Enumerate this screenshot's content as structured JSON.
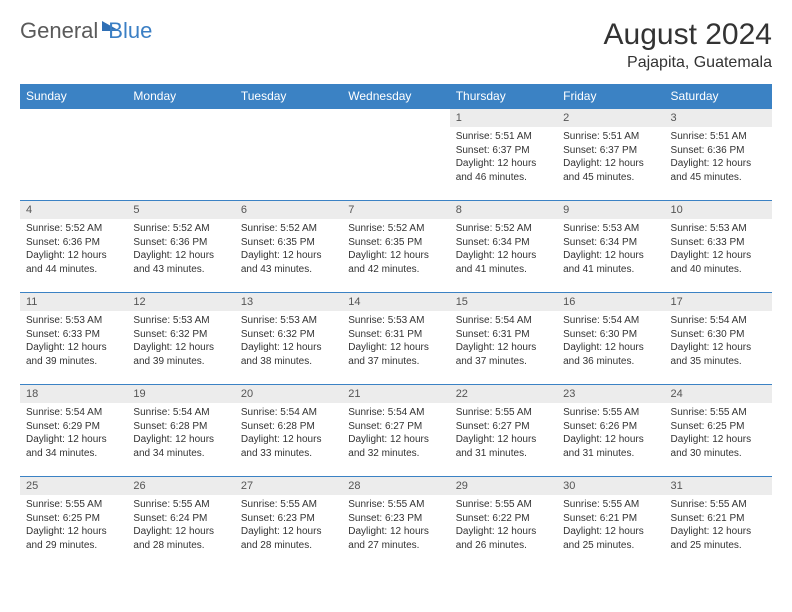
{
  "brand": {
    "part1": "General",
    "part2": "Blue"
  },
  "title": "August 2024",
  "location": "Pajapita, Guatemala",
  "colors": {
    "header_bg": "#3b82c4",
    "header_text": "#ffffff",
    "daynum_bg": "#ececec",
    "border": "#3b82c4",
    "brand_gray": "#5a5a5a",
    "brand_blue": "#3b7fc4"
  },
  "dayNames": [
    "Sunday",
    "Monday",
    "Tuesday",
    "Wednesday",
    "Thursday",
    "Friday",
    "Saturday"
  ],
  "weeks": [
    [
      {
        "n": "",
        "sr": "",
        "ss": "",
        "dl": ""
      },
      {
        "n": "",
        "sr": "",
        "ss": "",
        "dl": ""
      },
      {
        "n": "",
        "sr": "",
        "ss": "",
        "dl": ""
      },
      {
        "n": "",
        "sr": "",
        "ss": "",
        "dl": ""
      },
      {
        "n": "1",
        "sr": "5:51 AM",
        "ss": "6:37 PM",
        "dl": "12 hours and 46 minutes."
      },
      {
        "n": "2",
        "sr": "5:51 AM",
        "ss": "6:37 PM",
        "dl": "12 hours and 45 minutes."
      },
      {
        "n": "3",
        "sr": "5:51 AM",
        "ss": "6:36 PM",
        "dl": "12 hours and 45 minutes."
      }
    ],
    [
      {
        "n": "4",
        "sr": "5:52 AM",
        "ss": "6:36 PM",
        "dl": "12 hours and 44 minutes."
      },
      {
        "n": "5",
        "sr": "5:52 AM",
        "ss": "6:36 PM",
        "dl": "12 hours and 43 minutes."
      },
      {
        "n": "6",
        "sr": "5:52 AM",
        "ss": "6:35 PM",
        "dl": "12 hours and 43 minutes."
      },
      {
        "n": "7",
        "sr": "5:52 AM",
        "ss": "6:35 PM",
        "dl": "12 hours and 42 minutes."
      },
      {
        "n": "8",
        "sr": "5:52 AM",
        "ss": "6:34 PM",
        "dl": "12 hours and 41 minutes."
      },
      {
        "n": "9",
        "sr": "5:53 AM",
        "ss": "6:34 PM",
        "dl": "12 hours and 41 minutes."
      },
      {
        "n": "10",
        "sr": "5:53 AM",
        "ss": "6:33 PM",
        "dl": "12 hours and 40 minutes."
      }
    ],
    [
      {
        "n": "11",
        "sr": "5:53 AM",
        "ss": "6:33 PM",
        "dl": "12 hours and 39 minutes."
      },
      {
        "n": "12",
        "sr": "5:53 AM",
        "ss": "6:32 PM",
        "dl": "12 hours and 39 minutes."
      },
      {
        "n": "13",
        "sr": "5:53 AM",
        "ss": "6:32 PM",
        "dl": "12 hours and 38 minutes."
      },
      {
        "n": "14",
        "sr": "5:53 AM",
        "ss": "6:31 PM",
        "dl": "12 hours and 37 minutes."
      },
      {
        "n": "15",
        "sr": "5:54 AM",
        "ss": "6:31 PM",
        "dl": "12 hours and 37 minutes."
      },
      {
        "n": "16",
        "sr": "5:54 AM",
        "ss": "6:30 PM",
        "dl": "12 hours and 36 minutes."
      },
      {
        "n": "17",
        "sr": "5:54 AM",
        "ss": "6:30 PM",
        "dl": "12 hours and 35 minutes."
      }
    ],
    [
      {
        "n": "18",
        "sr": "5:54 AM",
        "ss": "6:29 PM",
        "dl": "12 hours and 34 minutes."
      },
      {
        "n": "19",
        "sr": "5:54 AM",
        "ss": "6:28 PM",
        "dl": "12 hours and 34 minutes."
      },
      {
        "n": "20",
        "sr": "5:54 AM",
        "ss": "6:28 PM",
        "dl": "12 hours and 33 minutes."
      },
      {
        "n": "21",
        "sr": "5:54 AM",
        "ss": "6:27 PM",
        "dl": "12 hours and 32 minutes."
      },
      {
        "n": "22",
        "sr": "5:55 AM",
        "ss": "6:27 PM",
        "dl": "12 hours and 31 minutes."
      },
      {
        "n": "23",
        "sr": "5:55 AM",
        "ss": "6:26 PM",
        "dl": "12 hours and 31 minutes."
      },
      {
        "n": "24",
        "sr": "5:55 AM",
        "ss": "6:25 PM",
        "dl": "12 hours and 30 minutes."
      }
    ],
    [
      {
        "n": "25",
        "sr": "5:55 AM",
        "ss": "6:25 PM",
        "dl": "12 hours and 29 minutes."
      },
      {
        "n": "26",
        "sr": "5:55 AM",
        "ss": "6:24 PM",
        "dl": "12 hours and 28 minutes."
      },
      {
        "n": "27",
        "sr": "5:55 AM",
        "ss": "6:23 PM",
        "dl": "12 hours and 28 minutes."
      },
      {
        "n": "28",
        "sr": "5:55 AM",
        "ss": "6:23 PM",
        "dl": "12 hours and 27 minutes."
      },
      {
        "n": "29",
        "sr": "5:55 AM",
        "ss": "6:22 PM",
        "dl": "12 hours and 26 minutes."
      },
      {
        "n": "30",
        "sr": "5:55 AM",
        "ss": "6:21 PM",
        "dl": "12 hours and 25 minutes."
      },
      {
        "n": "31",
        "sr": "5:55 AM",
        "ss": "6:21 PM",
        "dl": "12 hours and 25 minutes."
      }
    ]
  ],
  "labels": {
    "sunrise": "Sunrise:",
    "sunset": "Sunset:",
    "daylight": "Daylight:"
  }
}
